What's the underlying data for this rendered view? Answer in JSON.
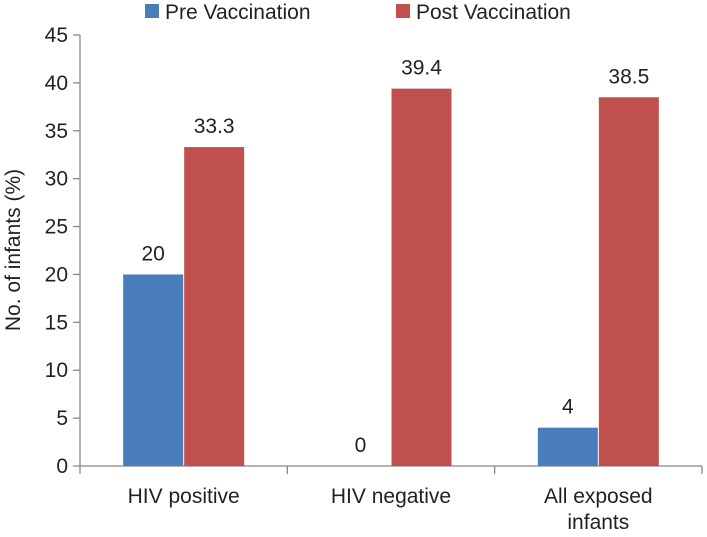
{
  "chart_data": {
    "type": "bar",
    "categories": [
      [
        "HIV positive"
      ],
      [
        "HIV negative"
      ],
      [
        "All exposed",
        "infants"
      ]
    ],
    "series": [
      {
        "name": "Pre Vaccination",
        "values": [
          20,
          0,
          4
        ],
        "color": "#4a7ebb"
      },
      {
        "name": "Post Vaccination",
        "values": [
          33.3,
          39.4,
          38.5
        ],
        "color": "#c0504d"
      }
    ],
    "data_labels": [
      [
        "20",
        "0",
        "4"
      ],
      [
        "33.3",
        "39.4",
        "38.5"
      ]
    ],
    "title": "",
    "xlabel": "",
    "ylabel": "No. of infants (%)",
    "ylim": [
      0,
      45
    ],
    "yticks": [
      0,
      5,
      10,
      15,
      20,
      25,
      30,
      35,
      40,
      45
    ],
    "grid": false,
    "legend_position": "top"
  }
}
